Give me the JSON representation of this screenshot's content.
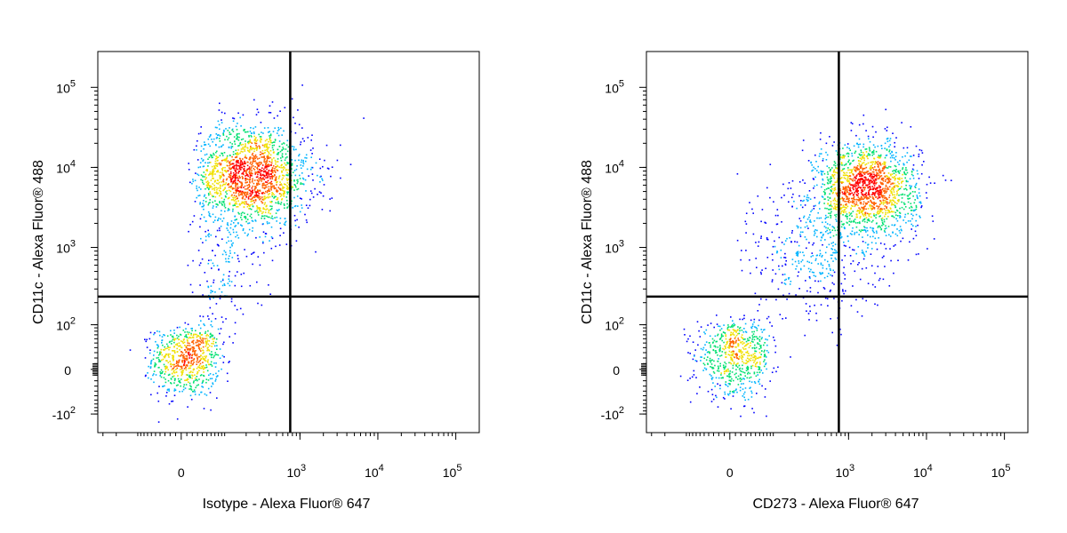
{
  "chart_data": [
    {
      "type": "scatter",
      "subtype": "flow-cytometry-density-dot-plot",
      "xlabel": "Isotype - Alexa Fluor® 647",
      "ylabel": "CD11c - Alexa Fluor® 488",
      "x_scale": "biexponential",
      "y_scale": "biexponential",
      "xlim": [
        -350,
        200000
      ],
      "ylim": [
        -180,
        280000
      ],
      "x_ticks": [
        {
          "value": 0,
          "base": "0",
          "exp": ""
        },
        {
          "value": 1000,
          "base": "10",
          "exp": "3"
        },
        {
          "value": 10000,
          "base": "10",
          "exp": "4"
        },
        {
          "value": 100000,
          "base": "10",
          "exp": "5"
        }
      ],
      "y_ticks": [
        {
          "value": -100,
          "base": "-10",
          "exp": "2"
        },
        {
          "value": 0,
          "base": "0",
          "exp": ""
        },
        {
          "value": 100,
          "base": "10",
          "exp": "2"
        },
        {
          "value": 1000,
          "base": "10",
          "exp": "3"
        },
        {
          "value": 10000,
          "base": "10",
          "exp": "4"
        },
        {
          "value": 100000,
          "base": "10",
          "exp": "5"
        }
      ],
      "quadrant_gate": {
        "x": 750,
        "y": 240
      },
      "grid": false,
      "colormap": [
        "#0000ff",
        "#00b4ff",
        "#00e070",
        "#f0e000",
        "#ff6000",
        "#ff0000"
      ],
      "clusters": [
        {
          "x": 10,
          "y": 20,
          "sx": 35,
          "sy": 35,
          "n": 700,
          "dist": "linear"
        },
        {
          "x": 230,
          "y": 8000,
          "sx": 0.4,
          "sy": 0.33,
          "n": 1750,
          "dist": "log"
        },
        {
          "x": 90,
          "y": 500,
          "sx": 0.3,
          "sy": 0.4,
          "n": 160,
          "dist": "log"
        }
      ]
    },
    {
      "type": "scatter",
      "subtype": "flow-cytometry-density-dot-plot",
      "xlabel": "CD273 - Alexa Fluor® 647",
      "ylabel": "CD11c - Alexa Fluor® 488",
      "x_scale": "biexponential",
      "y_scale": "biexponential",
      "xlim": [
        -350,
        200000
      ],
      "ylim": [
        -180,
        280000
      ],
      "x_ticks": [
        {
          "value": 0,
          "base": "0",
          "exp": ""
        },
        {
          "value": 1000,
          "base": "10",
          "exp": "3"
        },
        {
          "value": 10000,
          "base": "10",
          "exp": "4"
        },
        {
          "value": 100000,
          "base": "10",
          "exp": "5"
        }
      ],
      "y_ticks": [
        {
          "value": -100,
          "base": "-10",
          "exp": "2"
        },
        {
          "value": 0,
          "base": "0",
          "exp": ""
        },
        {
          "value": 100,
          "base": "10",
          "exp": "2"
        },
        {
          "value": 1000,
          "base": "10",
          "exp": "3"
        },
        {
          "value": 10000,
          "base": "10",
          "exp": "4"
        },
        {
          "value": 100000,
          "base": "10",
          "exp": "5"
        }
      ],
      "quadrant_gate": {
        "x": 750,
        "y": 240
      },
      "grid": false,
      "colormap": [
        "#0000ff",
        "#00b4ff",
        "#00e070",
        "#f0e000",
        "#ff6000",
        "#ff0000"
      ],
      "clusters": [
        {
          "x": 10,
          "y": 25,
          "sx": 40,
          "sy": 38,
          "n": 650,
          "dist": "linear"
        },
        {
          "x": 1700,
          "y": 5500,
          "sx": 0.33,
          "sy": 0.3,
          "n": 1600,
          "dist": "log"
        },
        {
          "x": 350,
          "y": 900,
          "sx": 0.45,
          "sy": 0.45,
          "n": 420,
          "dist": "log"
        }
      ]
    }
  ]
}
